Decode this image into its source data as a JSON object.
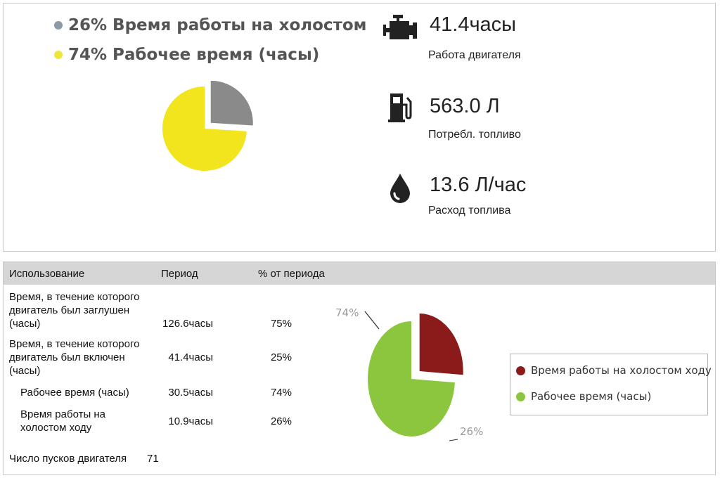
{
  "summary": {
    "legend": [
      {
        "text": "26% Время работы на холостом",
        "color": "#8a9aa8"
      },
      {
        "text": "74% Рабочее время (часы)",
        "color": "#f0e63a"
      }
    ],
    "pie": {
      "slices": [
        {
          "percent": 74,
          "color": "#f2e51e"
        },
        {
          "percent": 26,
          "color": "#8a8a8a"
        }
      ]
    },
    "metrics": [
      {
        "icon": "engine-icon",
        "value": "41.4часы",
        "label": "Работа двигателя"
      },
      {
        "icon": "fuel-pump-icon",
        "value": "563.0 Л",
        "label": "Потребл. топливо"
      },
      {
        "icon": "drop-icon",
        "value": "13.6 Л/час",
        "label": "Расход топлива"
      }
    ]
  },
  "table": {
    "headers": [
      "Использование",
      "Период",
      "% от периода"
    ],
    "rows": [
      {
        "name": "Время, в течение которого двигатель был заглушен (часы)",
        "period": "126.6часы",
        "percent": "75%"
      },
      {
        "name": "Время, в течение которого двигатель был включен (часы)",
        "period": "41.4часы",
        "percent": "25%"
      },
      {
        "name": "Рабочее время (часы)",
        "period": "30.5часы",
        "percent": "74%"
      },
      {
        "name": "Время работы на холостом ходу",
        "period": "10.9часы",
        "percent": "26%"
      }
    ],
    "starts_label": "Число пусков двигателя",
    "starts_value": "71"
  },
  "chart_data": {
    "type": "pie",
    "slices": [
      {
        "name": "Рабочее время (часы)",
        "label": "74%",
        "value": 74,
        "color": "#8cc63e"
      },
      {
        "name": "Время работы на холостом ходу",
        "label": "26%",
        "value": 26,
        "color": "#8b1a1a"
      }
    ],
    "legend": [
      "Время работы на холостом ходу",
      "Рабочее время (часы)"
    ],
    "legend_position": "right"
  }
}
